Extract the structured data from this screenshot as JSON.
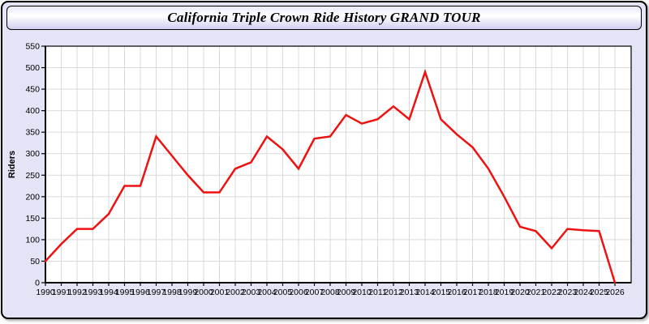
{
  "window": {
    "title": "California Triple Crown Ride History GRAND TOUR"
  },
  "chart_data": {
    "type": "line",
    "title": "California Triple Crown Ride History GRAND TOUR",
    "xlabel": "",
    "ylabel": "Riders",
    "x": [
      1990,
      1991,
      1992,
      1993,
      1994,
      1995,
      1996,
      1997,
      1998,
      1999,
      2000,
      2001,
      2002,
      2003,
      2004,
      2005,
      2006,
      2007,
      2008,
      2009,
      2010,
      2011,
      2012,
      2013,
      2014,
      2015,
      2016,
      2017,
      2018,
      2019,
      2020,
      2021,
      2022,
      2023,
      2024,
      2025,
      2026
    ],
    "series": [
      {
        "name": "Riders",
        "values": [
          50,
          90,
          125,
          125,
          160,
          225,
          225,
          340,
          295,
          250,
          210,
          210,
          265,
          280,
          340,
          310,
          265,
          335,
          340,
          390,
          370,
          380,
          410,
          380,
          490,
          380,
          345,
          315,
          265,
          200,
          130,
          120,
          80,
          125,
          122,
          120,
          0
        ]
      }
    ],
    "ylim": [
      0,
      550
    ],
    "yticks": [
      0,
      50,
      100,
      150,
      200,
      250,
      300,
      350,
      400,
      450,
      500,
      550
    ],
    "grid": true,
    "legend_position": "none"
  },
  "colors": {
    "line": "#ee1111",
    "grid": "#d9d9d9",
    "axis": "#000000",
    "plot_bg": "#ffffff",
    "page_bg": "#e4e4f7"
  }
}
